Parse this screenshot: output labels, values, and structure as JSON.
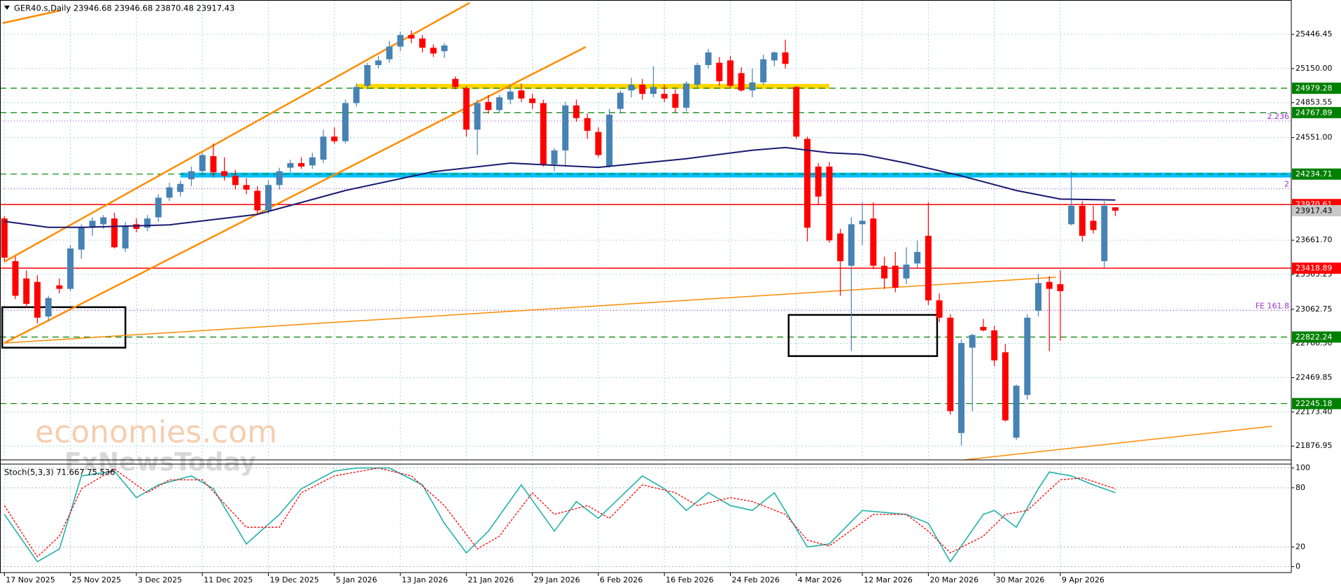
{
  "header": "GER40.s,Daily  23946.68 23946.68 23870.48 23917.43",
  "watermark": [
    "economies.com",
    "FxNewsToday"
  ],
  "chart_data": {
    "type": "candlestick",
    "up_color": "#4682b4",
    "down_color": "#ff0000",
    "ohlc": [
      [
        23850,
        23870,
        23480,
        23510
      ],
      [
        23480,
        23520,
        23150,
        23180
      ],
      [
        23330,
        23400,
        23080,
        23110
      ],
      [
        23300,
        23360,
        22940,
        22990
      ],
      [
        23000,
        23180,
        22960,
        23160
      ],
      [
        23270,
        23330,
        23200,
        23240
      ],
      [
        23240,
        23620,
        23220,
        23590
      ],
      [
        23580,
        23800,
        23500,
        23770
      ],
      [
        23770,
        23860,
        23700,
        23830
      ],
      [
        23800,
        23880,
        23760,
        23860
      ],
      [
        23850,
        23900,
        23590,
        23600
      ],
      [
        23590,
        23820,
        23560,
        23790
      ],
      [
        23800,
        23850,
        23730,
        23760
      ],
      [
        23770,
        23880,
        23740,
        23850
      ],
      [
        23860,
        24060,
        23820,
        24030
      ],
      [
        24030,
        24160,
        24000,
        24120
      ],
      [
        24080,
        24180,
        24040,
        24150
      ],
      [
        24190,
        24300,
        24130,
        24260
      ],
      [
        24260,
        24420,
        24220,
        24400
      ],
      [
        24390,
        24500,
        24210,
        24250
      ],
      [
        24260,
        24380,
        24180,
        24220
      ],
      [
        24220,
        24270,
        24100,
        24140
      ],
      [
        24140,
        24200,
        24060,
        24100
      ],
      [
        24090,
        24130,
        23880,
        23920
      ],
      [
        23920,
        24180,
        23890,
        24140
      ],
      [
        24140,
        24290,
        24100,
        24260
      ],
      [
        24290,
        24360,
        24250,
        24330
      ],
      [
        24330,
        24380,
        24280,
        24300
      ],
      [
        24310,
        24420,
        24280,
        24380
      ],
      [
        24360,
        24620,
        24330,
        24560
      ],
      [
        24560,
        24640,
        24500,
        24520
      ],
      [
        24520,
        24880,
        24500,
        24850
      ],
      [
        24850,
        25020,
        24820,
        24990
      ],
      [
        25000,
        25200,
        24970,
        25180
      ],
      [
        25180,
        25260,
        25150,
        25220
      ],
      [
        25230,
        25390,
        25200,
        25340
      ],
      [
        25340,
        25470,
        25300,
        25440
      ],
      [
        25440,
        25480,
        25370,
        25410
      ],
      [
        25410,
        25440,
        25290,
        25330
      ],
      [
        25330,
        25360,
        25250,
        25280
      ],
      [
        25300,
        25370,
        25240,
        25350
      ],
      [
        25060,
        25080,
        24970,
        24990
      ],
      [
        24980,
        25000,
        24560,
        24620
      ],
      [
        24620,
        24880,
        24400,
        24850
      ],
      [
        24860,
        24920,
        24760,
        24790
      ],
      [
        24790,
        24920,
        24770,
        24900
      ],
      [
        24880,
        25010,
        24840,
        24950
      ],
      [
        24960,
        25020,
        24860,
        24890
      ],
      [
        24890,
        24930,
        24800,
        24850
      ],
      [
        24850,
        24880,
        24300,
        24320
      ],
      [
        24320,
        24460,
        24260,
        24440
      ],
      [
        24440,
        24860,
        24300,
        24830
      ],
      [
        24830,
        24880,
        24690,
        24720
      ],
      [
        24720,
        24760,
        24540,
        24610
      ],
      [
        24600,
        24640,
        24380,
        24400
      ],
      [
        24300,
        24800,
        24290,
        24750
      ],
      [
        24800,
        24960,
        24760,
        24940
      ],
      [
        24960,
        25070,
        24900,
        25010
      ],
      [
        25010,
        25060,
        24880,
        24930
      ],
      [
        24930,
        25170,
        24900,
        24990
      ],
      [
        24930,
        25010,
        24860,
        24890
      ],
      [
        24930,
        24970,
        24770,
        24810
      ],
      [
        24810,
        25040,
        24780,
        25020
      ],
      [
        25010,
        25200,
        24990,
        25180
      ],
      [
        25180,
        25320,
        25150,
        25290
      ],
      [
        25200,
        25250,
        25000,
        25040
      ],
      [
        25220,
        25260,
        24980,
        25000
      ],
      [
        25110,
        25160,
        24950,
        24960
      ],
      [
        24960,
        25150,
        24900,
        25030
      ],
      [
        25030,
        25270,
        25010,
        25230
      ],
      [
        25220,
        25300,
        25170,
        25290
      ],
      [
        25290,
        25400,
        25150,
        25190
      ],
      [
        24990,
        25000,
        24540,
        24560
      ],
      [
        24540,
        24560,
        23650,
        23770
      ],
      [
        24300,
        24330,
        23970,
        24040
      ],
      [
        24300,
        24340,
        23640,
        23660
      ],
      [
        23720,
        23760,
        23180,
        23480
      ],
      [
        23440,
        23860,
        22700,
        23800
      ],
      [
        23800,
        23990,
        23620,
        23830
      ],
      [
        23850,
        23990,
        23410,
        23440
      ],
      [
        23440,
        23520,
        23240,
        23330
      ],
      [
        23440,
        23560,
        23210,
        23250
      ],
      [
        23330,
        23600,
        23280,
        23450
      ],
      [
        23460,
        23660,
        23420,
        23560
      ],
      [
        23700,
        23990,
        23100,
        23140
      ],
      [
        23140,
        23200,
        22950,
        22990
      ],
      [
        22990,
        23020,
        22150,
        22180
      ],
      [
        21990,
        22800,
        21880,
        22770
      ],
      [
        22730,
        22850,
        22180,
        22840
      ],
      [
        22910,
        22980,
        22870,
        22880
      ],
      [
        22880,
        22920,
        22570,
        22620
      ],
      [
        22690,
        22760,
        22090,
        22100
      ],
      [
        21950,
        22410,
        21930,
        22400
      ],
      [
        22320,
        23020,
        22280,
        22990
      ],
      [
        23050,
        23370,
        23000,
        23290
      ],
      [
        23300,
        23350,
        22700,
        23240
      ],
      [
        23280,
        23400,
        22790,
        23220
      ],
      [
        23800,
        24260,
        23790,
        23960
      ],
      [
        23960,
        24000,
        23650,
        23700
      ],
      [
        23830,
        23960,
        23720,
        23750
      ],
      [
        23480,
        24000,
        23420,
        23960
      ],
      [
        23946.68,
        23946.68,
        23870.48,
        23917.43
      ]
    ],
    "xlim": [
      -0.4,
      117
    ],
    "xticks": [
      {
        "value": 0,
        "label": "17 Nov 2025"
      },
      {
        "value": 6,
        "label": "25 Nov 2025"
      },
      {
        "value": 12,
        "label": "3 Dec 2025"
      },
      {
        "value": 18,
        "label": "11 Dec 2025"
      },
      {
        "value": 24,
        "label": "19 Dec 2025"
      },
      {
        "value": 30,
        "label": "5 Jan 2026"
      },
      {
        "value": 36,
        "label": "13 Jan 2026"
      },
      {
        "value": 42,
        "label": "21 Jan 2026"
      },
      {
        "value": 48,
        "label": "29 Jan 2026"
      },
      {
        "value": 54,
        "label": "6 Feb 2026"
      },
      {
        "value": 60,
        "label": "16 Feb 2026"
      },
      {
        "value": 66,
        "label": "24 Feb 2026"
      },
      {
        "value": 72,
        "label": "4 Mar 2026"
      },
      {
        "value": 78,
        "label": "12 Mar 2026"
      },
      {
        "value": 84,
        "label": "20 Mar 2026"
      },
      {
        "value": 90,
        "label": "30 Mar 2026"
      },
      {
        "value": 96,
        "label": "9 Apr 2026"
      }
    ],
    "ylim": [
      21757,
      25744
    ],
    "yticks": [
      25446.45,
      {
        "value": 25150,
        "label": "25150.00"
      },
      24853.55,
      {
        "value": 24551,
        "label": "24551.00"
      },
      {
        "value": 23661.7,
        "label": "23661.70"
      },
      23365.25,
      23062.75,
      {
        "value": 22766.3,
        "label": "22766.30"
      },
      22469.85,
      {
        "value": 22173.4,
        "label": "22173.40"
      },
      21876.95
    ],
    "grid": true,
    "moving_average": {
      "color": "#191970",
      "x": [
        0,
        4,
        7,
        15,
        23,
        31,
        39,
        46,
        54,
        62,
        68,
        71,
        75,
        78,
        82,
        87,
        92,
        96,
        101
      ],
      "values": [
        23825,
        23773,
        23773,
        23795,
        23885,
        24093,
        24256,
        24330,
        24293,
        24368,
        24442,
        24465,
        24420,
        24405,
        24330,
        24219,
        24093,
        24018,
        24010
      ]
    },
    "levels": [
      {
        "value": 24979.28,
        "color": "#008000",
        "style": "dashed"
      },
      {
        "value": 24767.89,
        "color": "#008000",
        "style": "dashed"
      },
      {
        "value": 24234.71,
        "color": "#008000",
        "style": "dashed"
      },
      {
        "value": 23970.61,
        "color": "#ff0000",
        "style": "solid"
      },
      {
        "value": 23917.43,
        "color": "#c8c8c8",
        "style": "none"
      },
      {
        "value": 23418.89,
        "color": "#ff0000",
        "style": "solid"
      },
      {
        "value": 22822.24,
        "color": "#008000",
        "style": "dashed"
      },
      {
        "value": 22245.18,
        "color": "#008000",
        "style": "dashed"
      }
    ],
    "fib_levels": [
      {
        "value": 24695,
        "label": "2.236"
      },
      {
        "value": 24108,
        "label": "2"
      },
      {
        "value": 23052,
        "label": "FE 161.8"
      }
    ],
    "zones": [
      {
        "value": 24995,
        "x": [
          32,
          75
        ],
        "color": "#ffd700"
      },
      {
        "value": 24226,
        "x": [
          16,
          117
        ],
        "color": "#00bfff"
      }
    ],
    "boxes": [
      {
        "x": [
          -0.2,
          11
        ],
        "y": [
          22730,
          23081
        ]
      },
      {
        "x": [
          71.3,
          84.8
        ],
        "y": [
          22657,
          23014
        ]
      }
    ],
    "stochastic": {
      "title": "Stoch(5,3,3) 71.667 75.536",
      "ylim": [
        -6,
        104
      ],
      "yticks": [
        0,
        20,
        80,
        100
      ],
      "main": {
        "color": "#20b2aa",
        "x": [
          0,
          3,
          5,
          7,
          10,
          12,
          14,
          17,
          19,
          22,
          25,
          27,
          30,
          32,
          35,
          38,
          40,
          42,
          44,
          47,
          50,
          52,
          54,
          58,
          60,
          62,
          64,
          66,
          68,
          70,
          73,
          75,
          78,
          82,
          84,
          86,
          89,
          90,
          92,
          94,
          95,
          97,
          99,
          101
        ],
        "values": [
          53,
          5,
          18,
          92,
          97,
          70,
          83,
          92,
          79,
          23,
          53,
          79,
          97,
          100,
          100,
          83,
          44,
          14,
          36,
          83,
          36,
          66,
          49,
          92,
          79,
          57,
          75,
          62,
          57,
          75,
          20,
          23,
          57,
          53,
          44,
          5,
          53,
          57,
          40,
          79,
          96,
          92,
          83,
          75
        ]
      },
      "signal": {
        "color": "#ff0000",
        "x": [
          0,
          3,
          5,
          7,
          10,
          13,
          15,
          18,
          22,
          25,
          27,
          30,
          34,
          37,
          40,
          43,
          45,
          48,
          50,
          53,
          55,
          58,
          61,
          63,
          66,
          68,
          71,
          73,
          75,
          79,
          82,
          84,
          86,
          89,
          91,
          93,
          96,
          98,
          101
        ],
        "values": [
          62,
          10,
          31,
          79,
          99,
          75,
          88,
          88,
          40,
          40,
          75,
          92,
          100,
          92,
          62,
          18,
          31,
          75,
          53,
          62,
          49,
          83,
          75,
          62,
          70,
          66,
          53,
          27,
          21,
          53,
          53,
          36,
          14,
          31,
          53,
          57,
          88,
          90,
          79
        ]
      }
    }
  }
}
